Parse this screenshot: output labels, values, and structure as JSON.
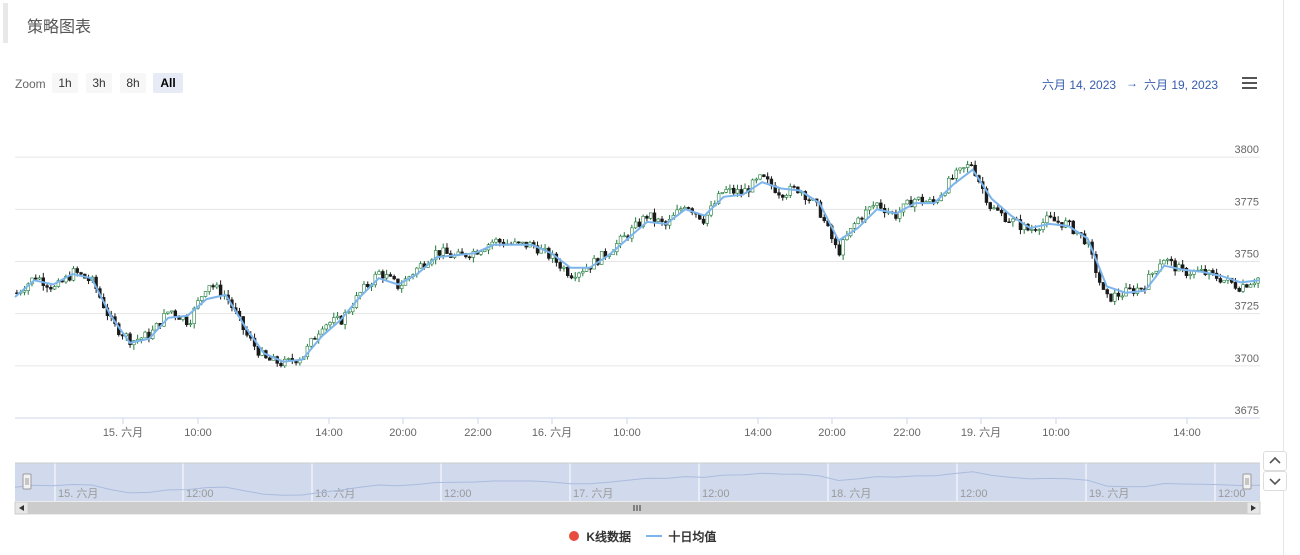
{
  "header": {
    "title": "策略图表"
  },
  "toolbar": {
    "zoom_label": "Zoom",
    "buttons": [
      {
        "label": "1h",
        "active": false
      },
      {
        "label": "3h",
        "active": false
      },
      {
        "label": "8h",
        "active": false
      },
      {
        "label": "All",
        "active": true
      }
    ],
    "range_from": "六月 14, 2023",
    "range_arrow": "→",
    "range_to": "六月 19, 2023",
    "menu_icon": "hamburger-menu-icon"
  },
  "colors": {
    "candle_up": "#1f7a3a",
    "candle_down": "#1a1a1a",
    "ma_line": "#7cb5ec",
    "legend_candle": "#e74c3c",
    "navigator_fill": "#ccd6eb",
    "date_range": "#335cad"
  },
  "legend": [
    {
      "name": "K线数据",
      "icon": "circle-marker-icon"
    },
    {
      "name": "十日均值",
      "icon": "line-marker-icon"
    }
  ],
  "chart_data": {
    "type": "candlestick",
    "title": "",
    "x_tick_labels": [
      "15. 六月",
      "10:00",
      "14:00",
      "20:00",
      "22:00",
      "16. 六月",
      "10:00",
      "14:00",
      "20:00",
      "22:00",
      "19. 六月",
      "10:00",
      "14:00"
    ],
    "y_ticks": [
      3675,
      3700,
      3725,
      3750,
      3775,
      3800
    ],
    "ylim": [
      3675,
      3825
    ],
    "grid": true,
    "legend_position": "bottom",
    "series": [
      {
        "name": "K线数据",
        "kind": "candlestick",
        "close_trace": [
          3735,
          3743,
          3737,
          3745,
          3740,
          3720,
          3712,
          3715,
          3727,
          3721,
          3740,
          3733,
          3715,
          3703,
          3701,
          3705,
          3720,
          3722,
          3735,
          3745,
          3738,
          3747,
          3755,
          3752,
          3755,
          3760,
          3758,
          3758,
          3752,
          3744,
          3748,
          3755,
          3763,
          3772,
          3767,
          3778,
          3770,
          3784,
          3783,
          3790,
          3783,
          3785,
          3775,
          3754,
          3770,
          3778,
          3772,
          3780,
          3778,
          3790,
          3797,
          3776,
          3770,
          3765,
          3770,
          3768,
          3760,
          3732,
          3735,
          3738,
          3752,
          3745,
          3745,
          3742,
          3738,
          3742
        ]
      },
      {
        "name": "十日均值",
        "kind": "line",
        "values": [
          3733,
          3741,
          3739,
          3744,
          3742,
          3724,
          3711,
          3713,
          3723,
          3724,
          3732,
          3734,
          3719,
          3706,
          3702,
          3703,
          3714,
          3722,
          3733,
          3742,
          3739,
          3744,
          3752,
          3753,
          3754,
          3758,
          3758,
          3758,
          3754,
          3747,
          3747,
          3753,
          3761,
          3769,
          3768,
          3775,
          3772,
          3781,
          3782,
          3788,
          3785,
          3784,
          3778,
          3760,
          3766,
          3775,
          3773,
          3778,
          3778,
          3787,
          3794,
          3780,
          3772,
          3766,
          3768,
          3767,
          3761,
          3738,
          3735,
          3736,
          3748,
          3746,
          3745,
          3743,
          3740,
          3741
        ]
      }
    ],
    "navigator": {
      "labels": [
        "15. 六月",
        "12:00",
        "16. 六月",
        "12:00",
        "17. 六月",
        "12:00",
        "18. 六月",
        "12:00",
        "19. 六月",
        "12:00"
      ]
    }
  }
}
